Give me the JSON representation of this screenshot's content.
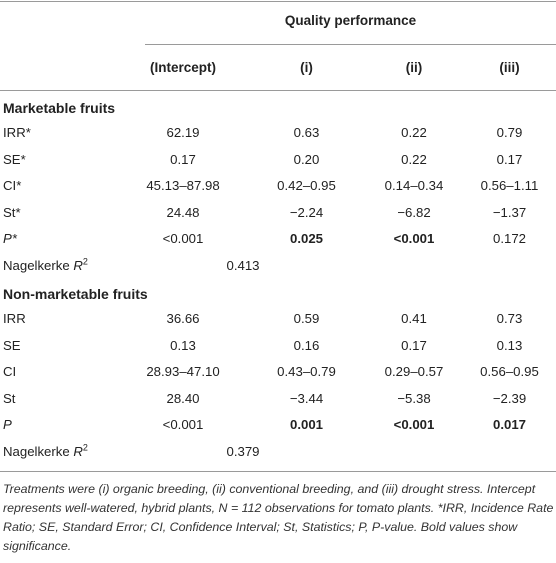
{
  "table": {
    "super_header": "Quality performance",
    "columns": [
      "(Intercept)",
      "(i)",
      "(ii)",
      "(iii)"
    ],
    "sections": [
      {
        "title": "Marketable fruits",
        "rows": [
          {
            "label": "IRR*",
            "values": [
              "62.19",
              "0.63",
              "0.22",
              "0.79"
            ],
            "bold": [
              false,
              false,
              false,
              false
            ],
            "italic_label": false
          },
          {
            "label": "SE*",
            "values": [
              "0.17",
              "0.20",
              "0.22",
              "0.17"
            ],
            "bold": [
              false,
              false,
              false,
              false
            ],
            "italic_label": false
          },
          {
            "label": "CI*",
            "values": [
              "45.13–87.98",
              "0.42–0.95",
              "0.14–0.34",
              "0.56–1.11"
            ],
            "bold": [
              false,
              false,
              false,
              false
            ],
            "italic_label": false
          },
          {
            "label": "St*",
            "values": [
              "24.48",
              "−2.24",
              "−6.82",
              "−1.37"
            ],
            "bold": [
              false,
              false,
              false,
              false
            ],
            "italic_label": false
          },
          {
            "label": "P*",
            "values": [
              "<0.001",
              "0.025",
              "<0.001",
              "0.172"
            ],
            "bold": [
              false,
              true,
              true,
              false
            ],
            "italic_label": true
          }
        ],
        "r2_label": "Nagelkerke R",
        "r2_sup": "2",
        "r2_value": "0.413"
      },
      {
        "title": "Non-marketable fruits",
        "rows": [
          {
            "label": "IRR",
            "values": [
              "36.66",
              "0.59",
              "0.41",
              "0.73"
            ],
            "bold": [
              false,
              false,
              false,
              false
            ],
            "italic_label": false
          },
          {
            "label": "SE",
            "values": [
              "0.13",
              "0.16",
              "0.17",
              "0.13"
            ],
            "bold": [
              false,
              false,
              false,
              false
            ],
            "italic_label": false
          },
          {
            "label": "CI",
            "values": [
              "28.93–47.10",
              "0.43–0.79",
              "0.29–0.57",
              "0.56–0.95"
            ],
            "bold": [
              false,
              false,
              false,
              false
            ],
            "italic_label": false
          },
          {
            "label": "St",
            "values": [
              "28.40",
              "−3.44",
              "−5.38",
              "−2.39"
            ],
            "bold": [
              false,
              false,
              false,
              false
            ],
            "italic_label": false
          },
          {
            "label": "P",
            "values": [
              "<0.001",
              "0.001",
              "<0.001",
              "0.017"
            ],
            "bold": [
              false,
              true,
              true,
              true
            ],
            "italic_label": true
          }
        ],
        "r2_label": "Nagelkerke R",
        "r2_sup": "2",
        "r2_value": "0.379"
      }
    ],
    "footnote": "Treatments were (i) organic breeding, (ii) conventional breeding, and (iii) drought stress. Intercept represents well-watered, hybrid plants, N = 112 observations for tomato plants. *IRR, Incidence Rate Ratio; SE, Standard Error; CI, Confidence Interval; St, Statistics; P, P-value. Bold values show significance."
  }
}
